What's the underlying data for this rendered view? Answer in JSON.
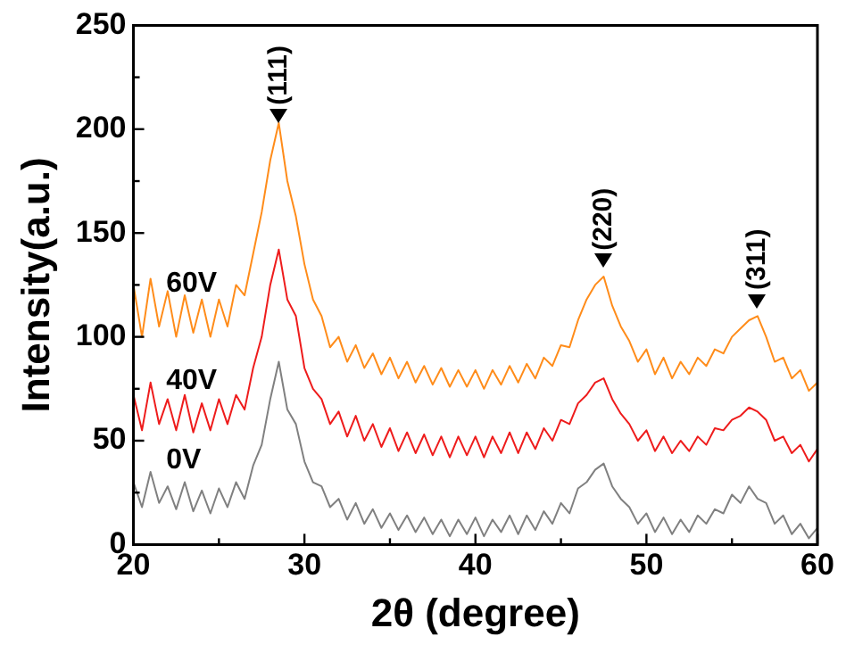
{
  "chart_data": {
    "type": "line",
    "xlabel": "2θ (degree)",
    "ylabel": "Intensity(a.u.)",
    "xlim": [
      20,
      60
    ],
    "xticks": [
      20,
      {
        "value": 25,
        "label": null
      },
      30,
      {
        "value": 35,
        "label": null
      },
      40,
      {
        "value": 45,
        "label": null
      },
      50,
      {
        "value": 55,
        "label": null
      },
      60
    ],
    "ylim": [
      0,
      250
    ],
    "yticks": [
      0,
      {
        "value": 25,
        "label": null
      },
      50,
      {
        "value": 75,
        "label": null
      },
      100,
      {
        "value": 125,
        "label": null
      },
      150,
      {
        "value": 175,
        "label": null
      },
      200,
      {
        "value": 225,
        "label": null
      },
      250
    ],
    "marker": "none",
    "legend": false,
    "x": [
      20,
      20.5,
      21,
      21.5,
      22,
      22.5,
      23,
      23.5,
      24,
      24.5,
      25,
      25.5,
      26,
      26.5,
      27,
      27.5,
      28,
      28.5,
      29,
      29.5,
      30,
      30.5,
      31,
      31.5,
      32,
      32.5,
      33,
      33.5,
      34,
      34.5,
      35,
      35.5,
      36,
      36.5,
      37,
      37.5,
      38,
      38.5,
      39,
      39.5,
      40,
      40.5,
      41,
      41.5,
      42,
      42.5,
      43,
      43.5,
      44,
      44.5,
      45,
      45.5,
      46,
      46.5,
      47,
      47.5,
      48,
      48.5,
      49,
      49.5,
      50,
      50.5,
      51,
      51.5,
      52,
      52.5,
      53,
      53.5,
      54,
      54.5,
      55,
      55.5,
      56,
      56.5,
      57,
      57.5,
      58,
      58.5,
      59,
      59.5,
      60
    ],
    "series": [
      {
        "name": "60V",
        "color": "#ff8c1a",
        "values": [
          125,
          100,
          128,
          105,
          122,
          100,
          120,
          102,
          118,
          100,
          118,
          105,
          125,
          120,
          140,
          160,
          185,
          203,
          175,
          158,
          135,
          118,
          110,
          95,
          100,
          88,
          96,
          85,
          92,
          82,
          90,
          80,
          88,
          78,
          86,
          77,
          85,
          76,
          84,
          76,
          84,
          75,
          84,
          77,
          86,
          78,
          87,
          80,
          90,
          86,
          96,
          95,
          108,
          118,
          125,
          129,
          115,
          105,
          98,
          88,
          94,
          82,
          90,
          80,
          88,
          82,
          90,
          86,
          94,
          92,
          100,
          104,
          108,
          110,
          100,
          88,
          90,
          80,
          84,
          74,
          78
        ]
      },
      {
        "name": "40V",
        "color": "#ee1c1c",
        "values": [
          72,
          55,
          78,
          58,
          70,
          55,
          72,
          54,
          68,
          55,
          70,
          58,
          72,
          65,
          85,
          100,
          125,
          142,
          118,
          110,
          85,
          75,
          70,
          58,
          64,
          52,
          62,
          50,
          58,
          47,
          56,
          45,
          54,
          44,
          53,
          43,
          52,
          42,
          52,
          43,
          52,
          42,
          52,
          44,
          54,
          44,
          54,
          46,
          56,
          50,
          60,
          58,
          68,
          72,
          78,
          80,
          70,
          63,
          58,
          50,
          55,
          45,
          52,
          44,
          50,
          45,
          52,
          48,
          56,
          55,
          60,
          62,
          66,
          64,
          60,
          50,
          52,
          44,
          48,
          40,
          46
        ]
      },
      {
        "name": "0V",
        "color": "#808080",
        "values": [
          30,
          18,
          35,
          20,
          28,
          17,
          30,
          16,
          26,
          15,
          27,
          18,
          30,
          22,
          38,
          48,
          70,
          88,
          65,
          58,
          40,
          30,
          28,
          18,
          22,
          12,
          20,
          10,
          17,
          8,
          15,
          7,
          14,
          6,
          13,
          5,
          12,
          4,
          12,
          5,
          13,
          4,
          12,
          6,
          14,
          5,
          14,
          7,
          16,
          10,
          20,
          15,
          27,
          30,
          36,
          39,
          28,
          22,
          18,
          10,
          15,
          6,
          13,
          5,
          12,
          6,
          14,
          10,
          17,
          15,
          24,
          20,
          28,
          22,
          20,
          10,
          14,
          5,
          10,
          3,
          8
        ]
      }
    ],
    "annotations": [
      {
        "text": "(111)",
        "x": 28.5,
        "y": 203
      },
      {
        "text": "(220)",
        "x": 47.5,
        "y": 133
      },
      {
        "text": "(311)",
        "x": 56.5,
        "y": 114
      }
    ]
  }
}
